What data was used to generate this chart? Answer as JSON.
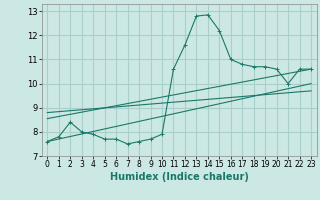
{
  "title": "",
  "xlabel": "Humidex (Indice chaleur)",
  "bg_color": "#cce8e4",
  "grid_color": "#aacfcb",
  "line_color": "#1a7868",
  "xlim": [
    -0.5,
    23.5
  ],
  "ylim": [
    7,
    13.3
  ],
  "yticks": [
    7,
    8,
    9,
    10,
    11,
    12,
    13
  ],
  "xticks": [
    0,
    1,
    2,
    3,
    4,
    5,
    6,
    7,
    8,
    9,
    10,
    11,
    12,
    13,
    14,
    15,
    16,
    17,
    18,
    19,
    20,
    21,
    22,
    23
  ],
  "series1_x": [
    0,
    1,
    2,
    3,
    4,
    5,
    6,
    7,
    8,
    9,
    10,
    11,
    12,
    13,
    14,
    15,
    16,
    17,
    18,
    19,
    20,
    21,
    22,
    23
  ],
  "series1_y": [
    7.6,
    7.8,
    8.4,
    8.0,
    7.9,
    7.7,
    7.7,
    7.5,
    7.6,
    7.7,
    7.9,
    10.6,
    11.6,
    12.8,
    12.85,
    12.2,
    11.0,
    10.8,
    10.7,
    10.7,
    10.6,
    10.0,
    10.6,
    10.6
  ],
  "series2_x": [
    0,
    23
  ],
  "series2_y": [
    7.6,
    10.0
  ],
  "series3_x": [
    0,
    23
  ],
  "series3_y": [
    8.55,
    10.6
  ],
  "series4_x": [
    0,
    23
  ],
  "series4_y": [
    8.8,
    9.7
  ]
}
